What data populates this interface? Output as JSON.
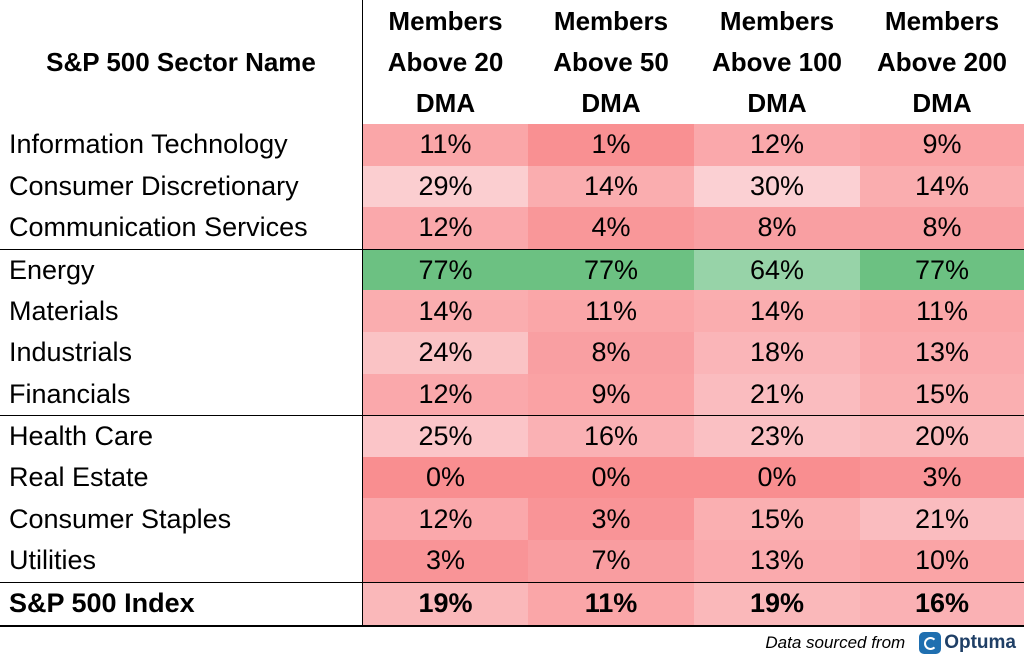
{
  "chart_data": {
    "type": "table",
    "columns": [
      "S&P 500 Sector Name",
      "Members Above 20 DMA",
      "Members Above 50 DMA",
      "Members Above 100 DMA",
      "Members Above 200 DMA"
    ],
    "header_lines": [
      [
        "S&P 500 Sector Name"
      ],
      [
        "Members",
        "Above 20",
        "DMA"
      ],
      [
        "Members",
        "Above 50",
        "DMA"
      ],
      [
        "Members",
        "Above 100",
        "DMA"
      ],
      [
        "Members",
        "Above 200",
        "DMA"
      ]
    ],
    "rows": [
      {
        "name": "Information Technology",
        "values": [
          11,
          1,
          12,
          9
        ]
      },
      {
        "name": "Consumer Discretionary",
        "values": [
          29,
          14,
          30,
          14
        ]
      },
      {
        "name": "Communication Services",
        "values": [
          12,
          4,
          8,
          8
        ]
      },
      {
        "name": "Energy",
        "values": [
          77,
          77,
          64,
          77
        ]
      },
      {
        "name": "Materials",
        "values": [
          14,
          11,
          14,
          11
        ]
      },
      {
        "name": "Industrials",
        "values": [
          24,
          8,
          18,
          13
        ]
      },
      {
        "name": "Financials",
        "values": [
          12,
          9,
          21,
          15
        ]
      },
      {
        "name": "Health Care",
        "values": [
          25,
          16,
          23,
          20
        ]
      },
      {
        "name": "Real Estate",
        "values": [
          0,
          0,
          0,
          3
        ]
      },
      {
        "name": "Consumer Staples",
        "values": [
          12,
          3,
          15,
          21
        ]
      },
      {
        "name": "Utilities",
        "values": [
          3,
          7,
          13,
          10
        ]
      },
      {
        "name": "S&P 500 Index",
        "values": [
          19,
          11,
          19,
          16
        ],
        "bold": true
      }
    ],
    "group_breaks_before": [
      3,
      7,
      11
    ],
    "value_suffix": "%",
    "colors": {
      "low": "#f8696b",
      "mid": "#fcfcff",
      "high": "#63be7b"
    }
  },
  "footer": {
    "source_text": "Data sourced from",
    "logo_text": "Optuma",
    "logo_icon": "optuma-logo-icon"
  }
}
